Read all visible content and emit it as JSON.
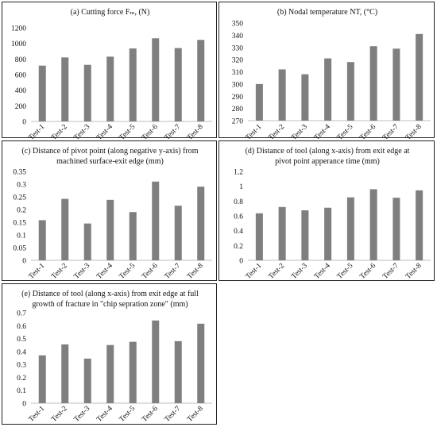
{
  "chart_data": [
    {
      "id": "a",
      "type": "bar",
      "title_lines": [
        "(a) Cutting force Fₘ, (N)"
      ],
      "categories": [
        "Test-1",
        "Test-2",
        "Test-3",
        "Test-4",
        "Test-5",
        "Test-6",
        "Test-7",
        "Test-8"
      ],
      "values": [
        715,
        820,
        725,
        830,
        935,
        1065,
        940,
        1045
      ],
      "ylim": [
        0,
        1200
      ],
      "yticks": [
        "0",
        "200",
        "400",
        "600",
        "800",
        "1000",
        "1200"
      ],
      "grid": false,
      "bar_color": "#7f7f7f"
    },
    {
      "id": "b",
      "type": "bar",
      "title_lines": [
        "(b) Nodal temperature NT, (°C)"
      ],
      "categories": [
        "Test-1",
        "Test-2",
        "Test-3",
        "Test-4",
        "Test-5",
        "Test-6",
        "Test-7",
        "Test-8"
      ],
      "values": [
        300,
        312,
        308,
        321,
        318,
        331,
        329,
        341
      ],
      "ylim": [
        270,
        350
      ],
      "yticks": [
        "270",
        "280",
        "290",
        "300",
        "310",
        "320",
        "330",
        "340",
        "350"
      ],
      "grid": false,
      "bar_color": "#7f7f7f"
    },
    {
      "id": "c",
      "type": "bar",
      "title_lines": [
        "(c) Distance of pivot point (along negative y-axis) from",
        "machined surface-exit edge (mm)"
      ],
      "categories": [
        "Test-1",
        "Test-2",
        "Test-3",
        "Test-4",
        "Test-5",
        "Test-6",
        "Test-7",
        "Test-8"
      ],
      "values": [
        0.158,
        0.242,
        0.145,
        0.238,
        0.19,
        0.31,
        0.215,
        0.29
      ],
      "ylim": [
        0,
        0.35
      ],
      "yticks": [
        "0",
        "0.05",
        "0.1",
        "0.15",
        "0.2",
        "0.25",
        "0.3",
        "0.35"
      ],
      "grid": false,
      "bar_color": "#7f7f7f"
    },
    {
      "id": "d",
      "type": "bar",
      "title_lines": [
        "(d) Distance of tool (along x-axis) from exit edge at",
        "pivot point apperance time (mm)"
      ],
      "categories": [
        "Test-1",
        "Test-2",
        "Test-3",
        "Test-4",
        "Test-5",
        "Test-6",
        "Test-7",
        "Test-8"
      ],
      "values": [
        0.635,
        0.72,
        0.675,
        0.71,
        0.85,
        0.96,
        0.845,
        0.945
      ],
      "ylim": [
        0,
        1.2
      ],
      "yticks": [
        "0",
        "0.2",
        "0.4",
        "0.6",
        "0.8",
        "1",
        "1.2"
      ],
      "grid": false,
      "bar_color": "#7f7f7f"
    },
    {
      "id": "e",
      "type": "bar",
      "title_lines": [
        "(e) Distance of tool (along x-axis) from exit edge at full",
        "growth of fracture in \"chip sepration zone\" (mm)"
      ],
      "categories": [
        "Test-1",
        "Test-2",
        "Test-3",
        "Test-4",
        "Test-5",
        "Test-6",
        "Test-7",
        "Test-8"
      ],
      "values": [
        0.37,
        0.455,
        0.345,
        0.45,
        0.475,
        0.64,
        0.48,
        0.615
      ],
      "ylim": [
        0,
        0.7
      ],
      "yticks": [
        "0",
        "0.1",
        "0.2",
        "0.3",
        "0.4",
        "0.5",
        "0.6",
        "0.7"
      ],
      "grid": false,
      "bar_color": "#7f7f7f"
    }
  ]
}
